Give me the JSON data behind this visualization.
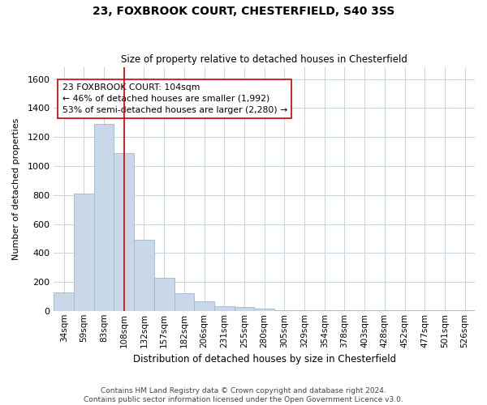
{
  "title1": "23, FOXBROOK COURT, CHESTERFIELD, S40 3SS",
  "title2": "Size of property relative to detached houses in Chesterfield",
  "xlabel": "Distribution of detached houses by size in Chesterfield",
  "ylabel": "Number of detached properties",
  "categories": [
    "34sqm",
    "59sqm",
    "83sqm",
    "108sqm",
    "132sqm",
    "157sqm",
    "182sqm",
    "206sqm",
    "231sqm",
    "255sqm",
    "280sqm",
    "305sqm",
    "329sqm",
    "354sqm",
    "378sqm",
    "403sqm",
    "428sqm",
    "452sqm",
    "477sqm",
    "501sqm",
    "526sqm"
  ],
  "values": [
    130,
    810,
    1290,
    1090,
    490,
    230,
    120,
    65,
    35,
    25,
    15,
    5,
    5,
    5,
    5,
    5,
    5,
    5,
    5,
    5,
    5
  ],
  "bar_color": "#c8d8e8",
  "bar_edge_color": "#a0b8cc",
  "vline_x": 3.0,
  "vline_color": "#cc0000",
  "annotation_text": "23 FOXBROOK COURT: 104sqm\n← 46% of detached houses are smaller (1,992)\n53% of semi-detached houses are larger (2,280) →",
  "annotation_box_color": "#ffffff",
  "annotation_box_edge": "#cc0000",
  "ylim": [
    0,
    1680
  ],
  "yticks": [
    0,
    200,
    400,
    600,
    800,
    1000,
    1200,
    1400,
    1600
  ],
  "footer": "Contains HM Land Registry data © Crown copyright and database right 2024.\nContains public sector information licensed under the Open Government Licence v3.0.",
  "bg_color": "#ffffff",
  "grid_color": "#c8d4e0"
}
